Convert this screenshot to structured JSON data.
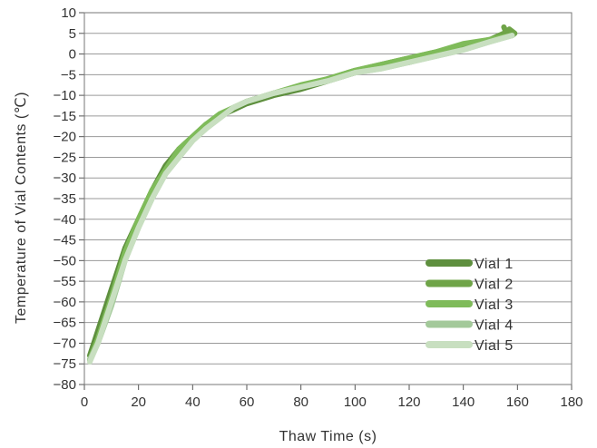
{
  "chart_data": {
    "type": "line",
    "title": "",
    "xlabel": "Thaw Time (s)",
    "ylabel": "Temperature of Vial Contents (℃)",
    "xlim": [
      0,
      180
    ],
    "ylim": [
      -80,
      10
    ],
    "xticks": [
      "0",
      "20",
      "40",
      "60",
      "80",
      "100",
      "120",
      "140",
      "160",
      "180"
    ],
    "yticks": [
      "10",
      "5",
      "0",
      "−5",
      "−10",
      "−15",
      "−20",
      "−25",
      "−30",
      "−35",
      "−40",
      "−45",
      "−50",
      "−55",
      "−60",
      "−65",
      "−70",
      "−75",
      "−80"
    ],
    "grid": "horizontal",
    "legend_position": "bottom-right",
    "series": [
      {
        "name": "Vial 1",
        "color": "#5e8f3e",
        "x": [
          2,
          5,
          10,
          15,
          20,
          25,
          30,
          35,
          40,
          45,
          50,
          55,
          60,
          65,
          70,
          80,
          90,
          100,
          105,
          110,
          120,
          130,
          140,
          150,
          155
        ],
        "y": [
          -73,
          -67,
          -57,
          -47,
          -40,
          -33,
          -27,
          -23,
          -20,
          -17,
          -15,
          -13.5,
          -12,
          -11,
          -10,
          -8.5,
          -6.5,
          -4.5,
          -3.5,
          -3,
          -2,
          0,
          2,
          3.5,
          5
        ]
      },
      {
        "name": "Vial 2",
        "color": "#6fa448",
        "x": [
          2,
          5,
          10,
          15,
          20,
          25,
          30,
          35,
          40,
          45,
          50,
          55,
          60,
          65,
          70,
          80,
          90,
          100,
          110,
          120,
          130,
          140,
          150,
          155,
          157,
          159,
          158,
          156,
          155
        ],
        "y": [
          -74,
          -69,
          -59,
          -48,
          -40,
          -33,
          -28,
          -23,
          -20,
          -17,
          -15,
          -13,
          -11.5,
          -10.5,
          -9.5,
          -8,
          -6,
          -4,
          -2.5,
          -1,
          0.5,
          2,
          3.5,
          5,
          6,
          5,
          4.5,
          5,
          6.5
        ]
      },
      {
        "name": "Vial 3",
        "color": "#7fbb5a",
        "x": [
          2,
          5,
          10,
          15,
          20,
          25,
          30,
          35,
          40,
          45,
          50,
          55,
          60,
          65,
          70,
          80,
          90,
          100,
          110,
          120,
          130,
          140,
          150,
          158
        ],
        "y": [
          -74,
          -69,
          -59,
          -48,
          -40,
          -33,
          -28,
          -23,
          -20,
          -17,
          -14.5,
          -13,
          -11.5,
          -10.5,
          -9.5,
          -7.5,
          -6,
          -4,
          -2.5,
          -1,
          0.5,
          2.5,
          3.5,
          4.5
        ]
      },
      {
        "name": "Vial 4",
        "color": "#a3c99a",
        "x": [
          2,
          5,
          10,
          15,
          20,
          25,
          30,
          35,
          40,
          45,
          50,
          55,
          60,
          65,
          70,
          80,
          90,
          100,
          110,
          120,
          130,
          140,
          150,
          158
        ],
        "y": [
          -74,
          -70,
          -61,
          -50,
          -42,
          -35,
          -29,
          -25,
          -21,
          -18,
          -15.5,
          -13,
          -11.5,
          -10.5,
          -9.5,
          -8,
          -6.5,
          -4.5,
          -3.5,
          -2,
          -0.5,
          1,
          3,
          4.5
        ]
      },
      {
        "name": "Vial 5",
        "color": "#c8dfc0",
        "x": [
          2,
          5,
          10,
          15,
          20,
          25,
          30,
          35,
          40,
          45,
          50,
          55,
          60,
          65,
          70,
          80,
          90,
          100,
          110,
          120,
          130,
          140,
          150,
          158
        ],
        "y": [
          -74.5,
          -70,
          -60,
          -50,
          -42,
          -35,
          -29,
          -25,
          -21,
          -18,
          -15.5,
          -13,
          -11.5,
          -10.5,
          -9.5,
          -8,
          -6.5,
          -4.5,
          -3.5,
          -2,
          -0.5,
          1,
          3,
          4.5
        ]
      }
    ]
  }
}
